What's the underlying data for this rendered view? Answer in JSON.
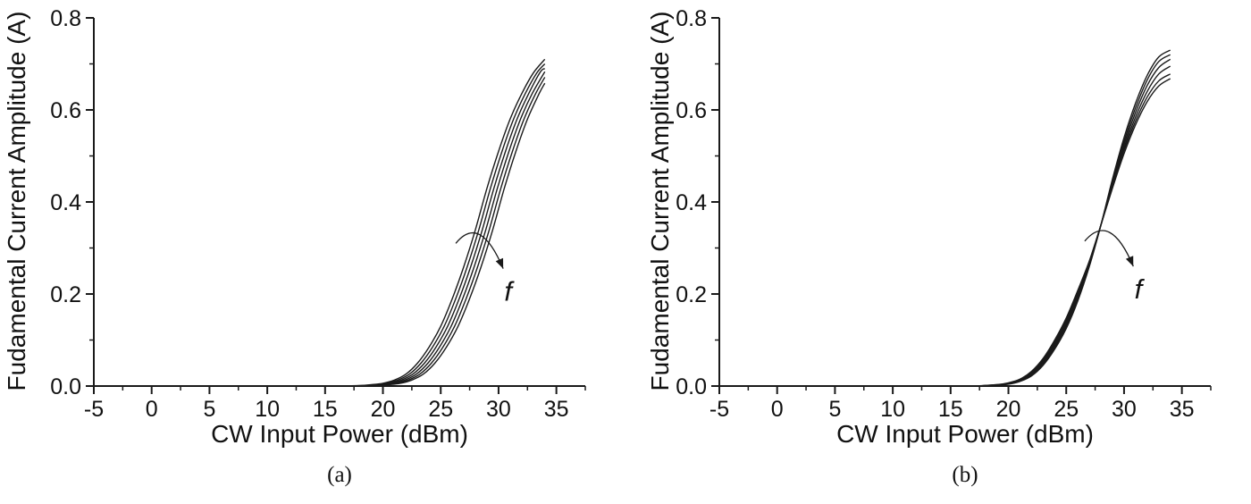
{
  "colors": {
    "background": "#ffffff",
    "axis": "#1a1a1a",
    "curve": "#1a1a1a",
    "text": "#1a1a1a"
  },
  "chart_data": [
    {
      "type": "line",
      "panel_label": "(a)",
      "xlabel": "CW Input Power (dBm)",
      "ylabel": "Fudamental Current Amplitude (A)",
      "xlim": [
        -5,
        37.5
      ],
      "ylim": [
        0,
        0.8
      ],
      "xticks": [
        "-5",
        "0",
        "5",
        "10",
        "15",
        "20",
        "25",
        "30",
        "35"
      ],
      "yticks": [
        "0.0",
        "0.2",
        "0.4",
        "0.6",
        "0.8"
      ],
      "x_minor_step": 2.5,
      "y_minor_step": 0.1,
      "grid": false,
      "legend": false,
      "annotation": {
        "label": "f",
        "arrow_start": [
          26.3,
          0.31
        ],
        "arrow_ctrl": [
          28.4,
          0.375
        ],
        "arrow_end": [
          30.4,
          0.255
        ],
        "label_pos": [
          30.5,
          0.185
        ]
      },
      "series": [
        {
          "name": "curve1",
          "points": [
            [
              14,
              0
            ],
            [
              16,
              0
            ],
            [
              18,
              0.001
            ],
            [
              19,
              0.003
            ],
            [
              20,
              0.006
            ],
            [
              21,
              0.013
            ],
            [
              22,
              0.026
            ],
            [
              23,
              0.05
            ],
            [
              24,
              0.085
            ],
            [
              25,
              0.13
            ],
            [
              26,
              0.19
            ],
            [
              27,
              0.26
            ],
            [
              28,
              0.34
            ],
            [
              29,
              0.43
            ],
            [
              30,
              0.51
            ],
            [
              31,
              0.58
            ],
            [
              32,
              0.635
            ],
            [
              33,
              0.68
            ],
            [
              34,
              0.71
            ]
          ]
        },
        {
          "name": "curve2",
          "points": [
            [
              14,
              0
            ],
            [
              16.3,
              0
            ],
            [
              18.3,
              0.001
            ],
            [
              19.3,
              0.003
            ],
            [
              20.3,
              0.006
            ],
            [
              21.3,
              0.013
            ],
            [
              22.3,
              0.026
            ],
            [
              23.3,
              0.05
            ],
            [
              24.3,
              0.085
            ],
            [
              25.3,
              0.13
            ],
            [
              26.3,
              0.19
            ],
            [
              27.3,
              0.26
            ],
            [
              28.3,
              0.34
            ],
            [
              29.3,
              0.43
            ],
            [
              30.3,
              0.51
            ],
            [
              31.3,
              0.58
            ],
            [
              32.3,
              0.635
            ],
            [
              33.3,
              0.68
            ],
            [
              34,
              0.7
            ]
          ]
        },
        {
          "name": "curve3",
          "points": [
            [
              14,
              0
            ],
            [
              16.6,
              0
            ],
            [
              18.6,
              0.001
            ],
            [
              19.6,
              0.003
            ],
            [
              20.6,
              0.006
            ],
            [
              21.6,
              0.013
            ],
            [
              22.6,
              0.026
            ],
            [
              23.6,
              0.05
            ],
            [
              24.6,
              0.085
            ],
            [
              25.6,
              0.13
            ],
            [
              26.6,
              0.19
            ],
            [
              27.6,
              0.26
            ],
            [
              28.6,
              0.34
            ],
            [
              29.6,
              0.43
            ],
            [
              30.6,
              0.51
            ],
            [
              31.6,
              0.58
            ],
            [
              32.6,
              0.635
            ],
            [
              33.6,
              0.682
            ],
            [
              34,
              0.69
            ]
          ]
        },
        {
          "name": "curve4",
          "points": [
            [
              14,
              0
            ],
            [
              16.9,
              0
            ],
            [
              18.9,
              0.001
            ],
            [
              19.9,
              0.003
            ],
            [
              20.9,
              0.006
            ],
            [
              21.9,
              0.013
            ],
            [
              22.9,
              0.026
            ],
            [
              23.9,
              0.05
            ],
            [
              24.9,
              0.085
            ],
            [
              25.9,
              0.13
            ],
            [
              26.9,
              0.19
            ],
            [
              27.9,
              0.26
            ],
            [
              28.9,
              0.34
            ],
            [
              29.9,
              0.43
            ],
            [
              30.9,
              0.51
            ],
            [
              31.9,
              0.58
            ],
            [
              32.9,
              0.635
            ],
            [
              34,
              0.683
            ]
          ]
        },
        {
          "name": "curve5",
          "points": [
            [
              14,
              0
            ],
            [
              17.2,
              0
            ],
            [
              19.2,
              0.001
            ],
            [
              20.2,
              0.003
            ],
            [
              21.2,
              0.006
            ],
            [
              22.2,
              0.013
            ],
            [
              23.2,
              0.026
            ],
            [
              24.2,
              0.05
            ],
            [
              25.2,
              0.085
            ],
            [
              26.2,
              0.13
            ],
            [
              27.2,
              0.19
            ],
            [
              28.2,
              0.26
            ],
            [
              29.2,
              0.34
            ],
            [
              30.2,
              0.43
            ],
            [
              31.2,
              0.51
            ],
            [
              32.2,
              0.58
            ],
            [
              33.2,
              0.635
            ],
            [
              34,
              0.671
            ]
          ]
        },
        {
          "name": "curve6",
          "points": [
            [
              14,
              0
            ],
            [
              17.5,
              0
            ],
            [
              19.5,
              0.001
            ],
            [
              20.5,
              0.003
            ],
            [
              21.5,
              0.006
            ],
            [
              22.5,
              0.013
            ],
            [
              23.5,
              0.026
            ],
            [
              24.5,
              0.05
            ],
            [
              25.5,
              0.085
            ],
            [
              26.5,
              0.13
            ],
            [
              27.5,
              0.19
            ],
            [
              28.5,
              0.26
            ],
            [
              29.5,
              0.34
            ],
            [
              30.5,
              0.43
            ],
            [
              31.5,
              0.51
            ],
            [
              32.5,
              0.58
            ],
            [
              33.5,
              0.635
            ],
            [
              34,
              0.658
            ]
          ]
        }
      ]
    },
    {
      "type": "line",
      "panel_label": "(b)",
      "xlabel": "CW Input Power (dBm)",
      "ylabel": "Fudamental Current Amplitude (A)",
      "xlim": [
        -5,
        37.5
      ],
      "ylim": [
        0,
        0.8
      ],
      "xticks": [
        "-5",
        "0",
        "5",
        "10",
        "15",
        "20",
        "25",
        "30",
        "35"
      ],
      "yticks": [
        "0.0",
        "0.2",
        "0.4",
        "0.6",
        "0.8"
      ],
      "x_minor_step": 2.5,
      "y_minor_step": 0.1,
      "grid": false,
      "legend": false,
      "annotation": {
        "label": "f",
        "arrow_start": [
          26.6,
          0.315
        ],
        "arrow_ctrl": [
          28.8,
          0.38
        ],
        "arrow_end": [
          30.8,
          0.26
        ],
        "label_pos": [
          30.9,
          0.19
        ]
      },
      "series": [
        {
          "name": "curve1",
          "points": [
            [
              14,
              0
            ],
            [
              17,
              0
            ],
            [
              19,
              0.002
            ],
            [
              20,
              0.004
            ],
            [
              21,
              0.01
            ],
            [
              22,
              0.022
            ],
            [
              23,
              0.045
            ],
            [
              24,
              0.08
            ],
            [
              25,
              0.125
            ],
            [
              26,
              0.185
            ],
            [
              27,
              0.26
            ],
            [
              28,
              0.35
            ],
            [
              29,
              0.45
            ],
            [
              30,
              0.54
            ],
            [
              31,
              0.615
            ],
            [
              32,
              0.675
            ],
            [
              33,
              0.715
            ],
            [
              34,
              0.73
            ]
          ]
        },
        {
          "name": "curve2",
          "points": [
            [
              14,
              0
            ],
            [
              17,
              0
            ],
            [
              19,
              0.002
            ],
            [
              20,
              0.005
            ],
            [
              21,
              0.011
            ],
            [
              22,
              0.024
            ],
            [
              23,
              0.048
            ],
            [
              24,
              0.084
            ],
            [
              25,
              0.13
            ],
            [
              26,
              0.19
            ],
            [
              27,
              0.262
            ],
            [
              28,
              0.35
            ],
            [
              29,
              0.446
            ],
            [
              30,
              0.532
            ],
            [
              31,
              0.605
            ],
            [
              32,
              0.665
            ],
            [
              33,
              0.705
            ],
            [
              34,
              0.72
            ]
          ]
        },
        {
          "name": "curve3",
          "points": [
            [
              14,
              0
            ],
            [
              17,
              0
            ],
            [
              19,
              0.002
            ],
            [
              20,
              0.005
            ],
            [
              21,
              0.012
            ],
            [
              22,
              0.026
            ],
            [
              23,
              0.051
            ],
            [
              24,
              0.088
            ],
            [
              25,
              0.134
            ],
            [
              26,
              0.195
            ],
            [
              27,
              0.265
            ],
            [
              28,
              0.35
            ],
            [
              29,
              0.442
            ],
            [
              30,
              0.525
            ],
            [
              31,
              0.595
            ],
            [
              32,
              0.653
            ],
            [
              33,
              0.692
            ],
            [
              34,
              0.71
            ]
          ]
        },
        {
          "name": "curve4",
          "points": [
            [
              14,
              0
            ],
            [
              17,
              0
            ],
            [
              19,
              0.002
            ],
            [
              20,
              0.006
            ],
            [
              21,
              0.013
            ],
            [
              22,
              0.028
            ],
            [
              23,
              0.054
            ],
            [
              24,
              0.092
            ],
            [
              25,
              0.139
            ],
            [
              26,
              0.2
            ],
            [
              27,
              0.268
            ],
            [
              28,
              0.35
            ],
            [
              29,
              0.438
            ],
            [
              30,
              0.518
            ],
            [
              31,
              0.585
            ],
            [
              32,
              0.64
            ],
            [
              33,
              0.678
            ],
            [
              34,
              0.695
            ]
          ]
        },
        {
          "name": "curve5",
          "points": [
            [
              14,
              0
            ],
            [
              17,
              0
            ],
            [
              19,
              0.003
            ],
            [
              20,
              0.006
            ],
            [
              21,
              0.014
            ],
            [
              22,
              0.03
            ],
            [
              23,
              0.057
            ],
            [
              24,
              0.096
            ],
            [
              25,
              0.143
            ],
            [
              26,
              0.204
            ],
            [
              27,
              0.27
            ],
            [
              28,
              0.35
            ],
            [
              29,
              0.435
            ],
            [
              30,
              0.512
            ],
            [
              31,
              0.576
            ],
            [
              32,
              0.628
            ],
            [
              33,
              0.663
            ],
            [
              34,
              0.678
            ]
          ]
        },
        {
          "name": "curve6",
          "points": [
            [
              14,
              0
            ],
            [
              17,
              0
            ],
            [
              19,
              0.003
            ],
            [
              20,
              0.007
            ],
            [
              21,
              0.015
            ],
            [
              22,
              0.032
            ],
            [
              23,
              0.06
            ],
            [
              24,
              0.1
            ],
            [
              25,
              0.148
            ],
            [
              26,
              0.208
            ],
            [
              27,
              0.272
            ],
            [
              28,
              0.35
            ],
            [
              29,
              0.43
            ],
            [
              30,
              0.505
            ],
            [
              31,
              0.568
            ],
            [
              32,
              0.618
            ],
            [
              33,
              0.652
            ],
            [
              34,
              0.668
            ]
          ]
        }
      ]
    }
  ]
}
